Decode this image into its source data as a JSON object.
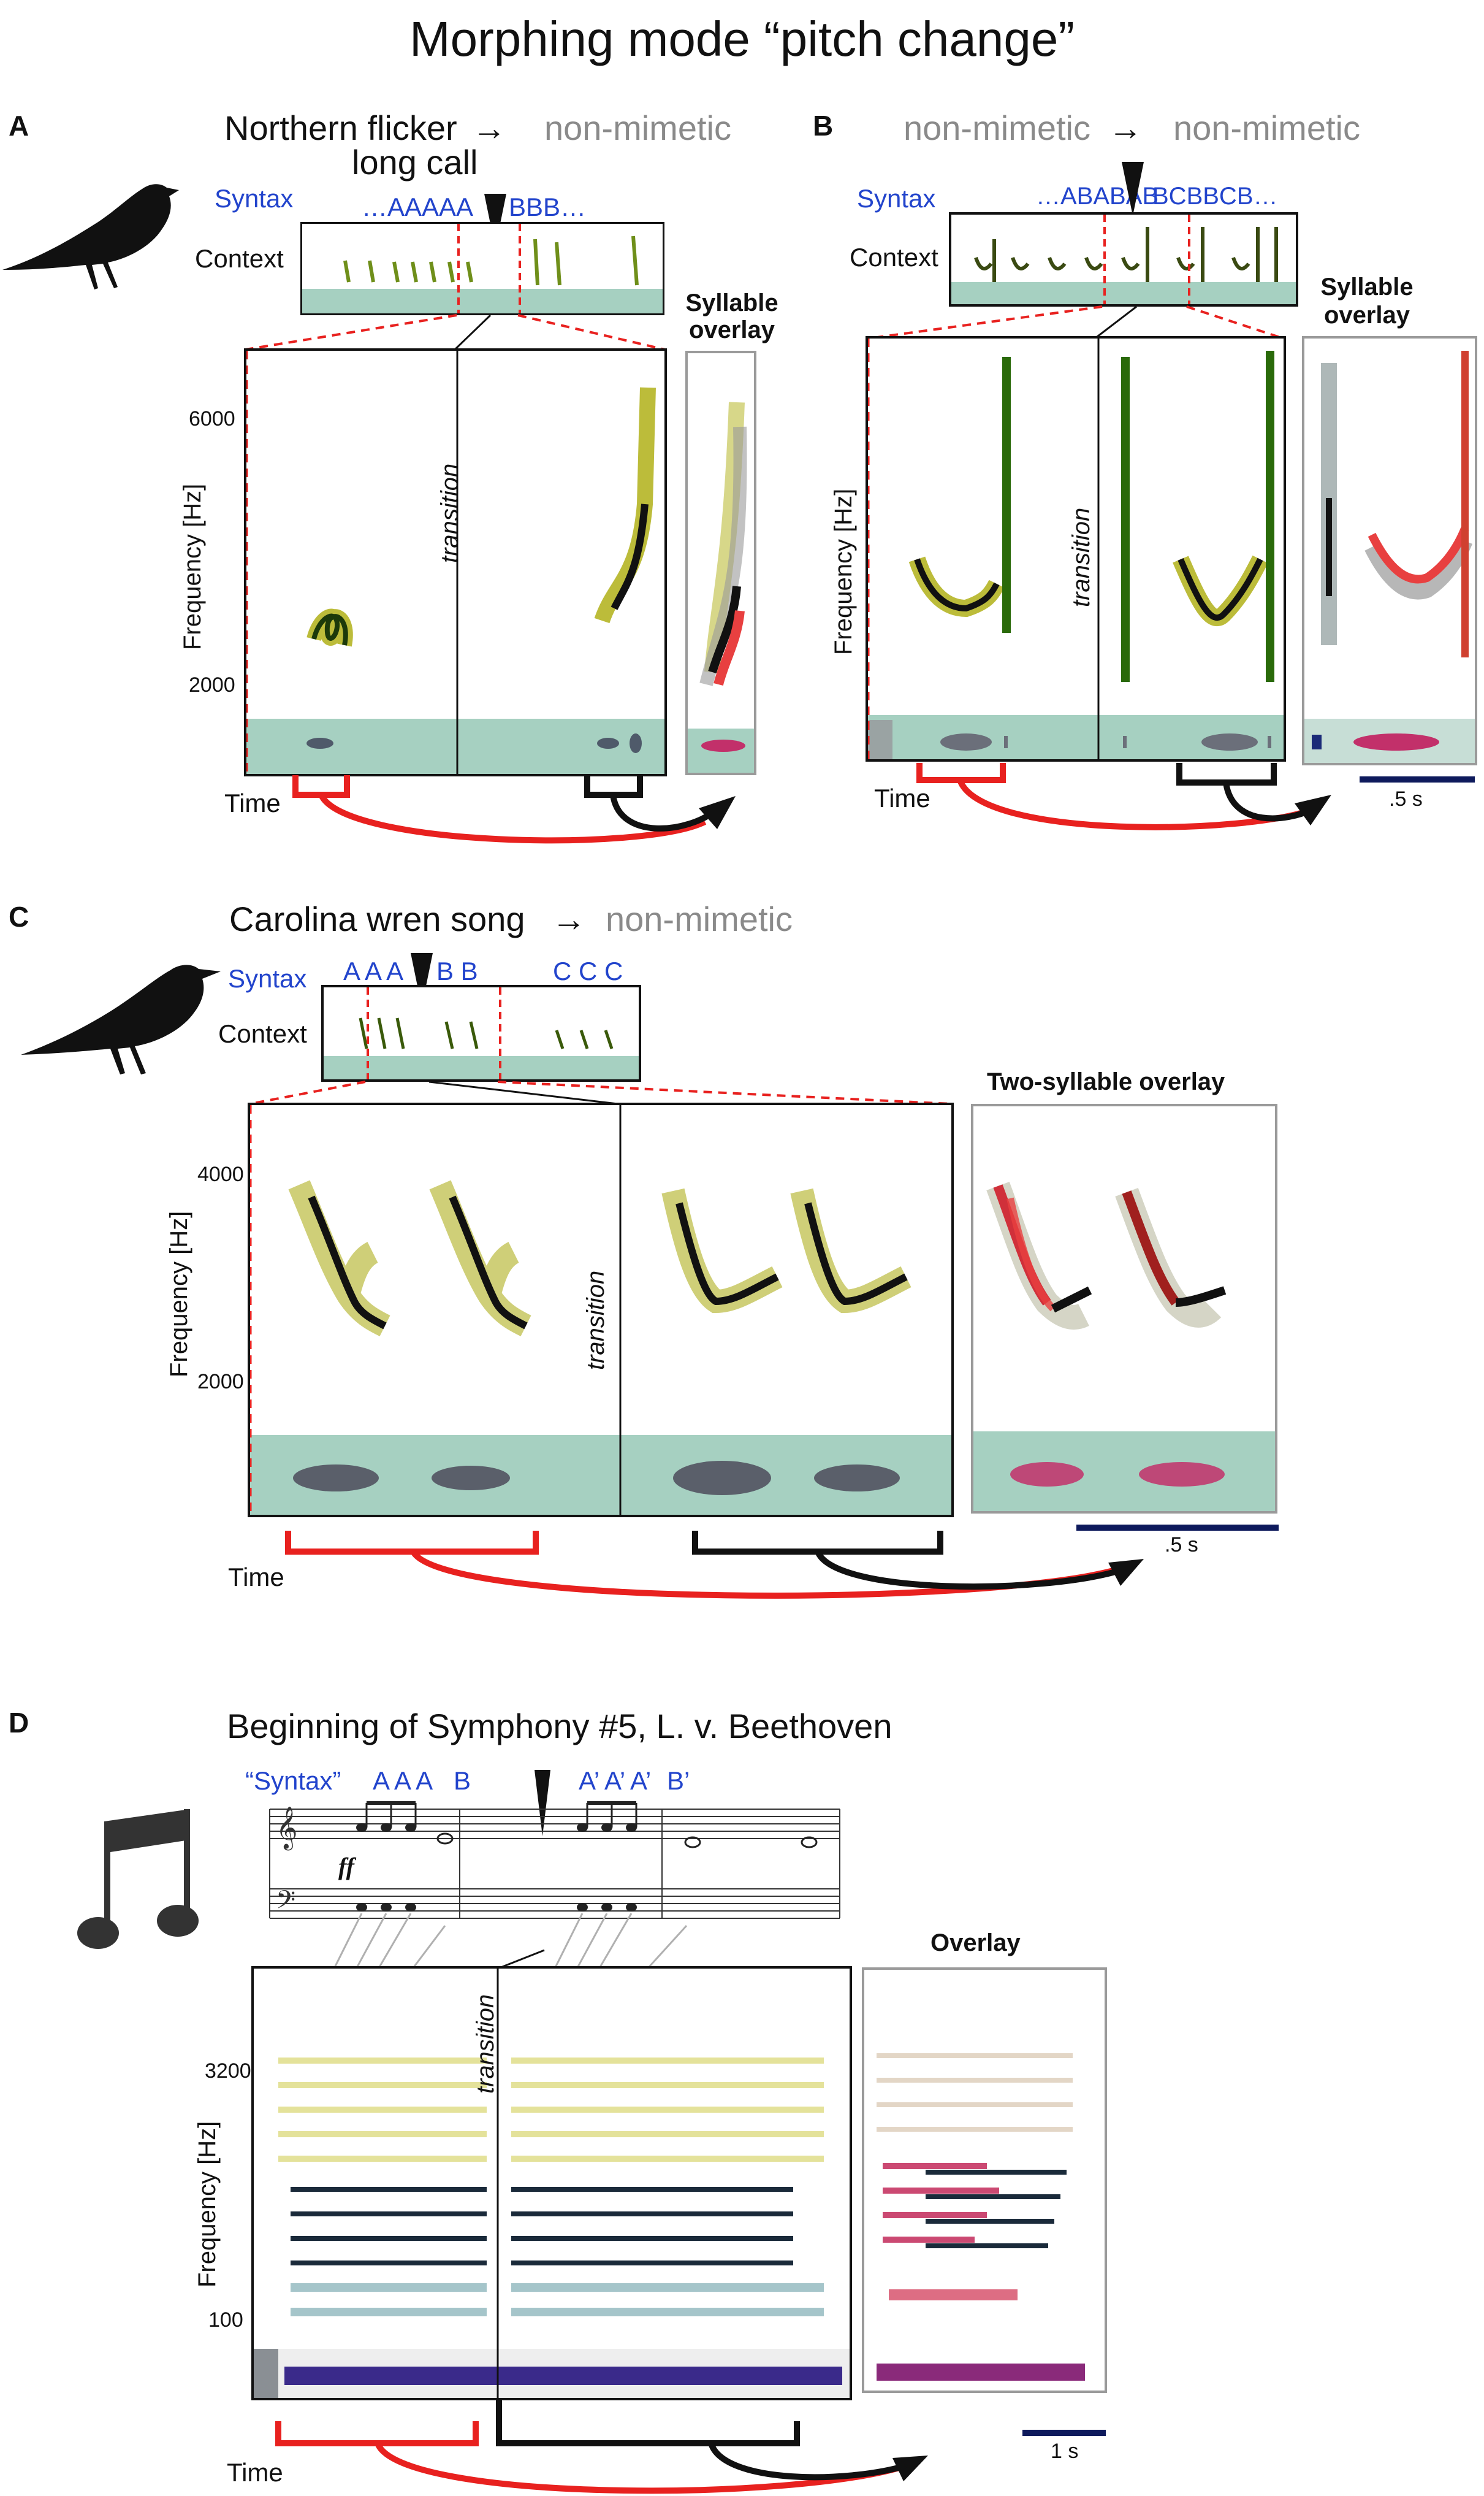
{
  "figure_title": "Morphing mode “pitch change”",
  "common": {
    "syntax_label": "Syntax",
    "context_label": "Context",
    "time_label": "Time",
    "frequency_label": "Frequency [Hz]",
    "transition_label": "transition"
  },
  "panel_a": {
    "letter": "A",
    "title_source_line1": "Northern flicker",
    "title_source_line2": "long call",
    "title_arrow": "→",
    "title_target": "non-mimetic",
    "syntax_seq1": "…AAAAA",
    "syntax_seq2": "BBB…",
    "overlay_label_line1": "Syllable",
    "overlay_label_line2": "overlay",
    "ticks": [
      "6000",
      "2000"
    ]
  },
  "panel_b": {
    "letter": "B",
    "title_source": "non-mimetic",
    "title_arrow": "→",
    "title_target": "non-mimetic",
    "syntax_seq1": "…ABABAB",
    "syntax_seq2": "BCBBCB…",
    "overlay_label_line1": "Syllable",
    "overlay_label_line2": "overlay",
    "scale_label": ".5 s"
  },
  "panel_c": {
    "letter": "C",
    "title_source": "Carolina wren song",
    "title_arrow": "→",
    "title_target": "non-mimetic",
    "syntax_groups": [
      "A A A",
      "B B",
      "C C C"
    ],
    "overlay_label": "Two-syllable overlay",
    "ticks": [
      "4000",
      "2000"
    ],
    "scale_label": ".5 s"
  },
  "panel_d": {
    "letter": "D",
    "title": "Beginning of Symphony #5, L. v. Beethoven",
    "syntax_label": "“Syntax”",
    "syntax_groups": [
      "A A A",
      "B",
      "A’ A’ A’",
      "B’"
    ],
    "dynamic_mark": "ff",
    "overlay_label": "Overlay",
    "ticks": [
      "3200",
      "100"
    ],
    "scale_label": "1 s"
  },
  "colors": {
    "syntax_blue": "#2244cc",
    "source_bracket_red": "#e8211f",
    "target_bracket_black": "#111111",
    "grey_text": "#8a8a8a",
    "spectrogram_yellow": "#cfcf55",
    "spectrogram_green": "#4a8a1a",
    "waveform_bg": "#a6d0c1",
    "scale_bar_navy": "#0e1a5c",
    "overlay_pink": "#c2306a"
  },
  "icons": [
    "bird-silhouette-icon",
    "music-note-icon",
    "selection-marker-icon"
  ]
}
